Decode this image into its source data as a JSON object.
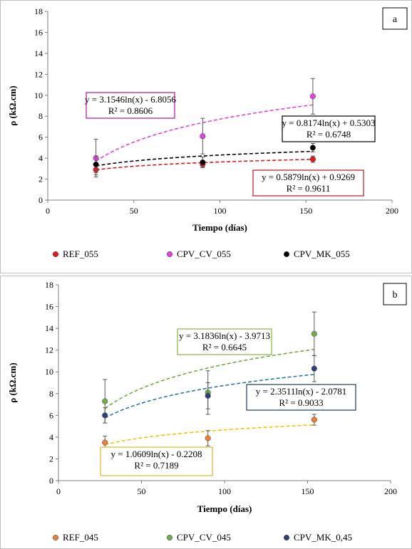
{
  "chart_data": [
    {
      "type": "scatter",
      "panel_label": "a",
      "xlabel": "Tiempo (días)",
      "ylabel": "ρ (kΩ.cm)",
      "xlim": [
        0,
        200
      ],
      "ylim": [
        0,
        18
      ],
      "xticks": [
        0,
        50,
        100,
        150,
        200
      ],
      "yticks": [
        0,
        2,
        4,
        6,
        8,
        10,
        12,
        14,
        16,
        18
      ],
      "grid": false,
      "legend_position": "bottom",
      "series": [
        {
          "name": "REF_055",
          "color": "#e8141b",
          "x": [
            28,
            90,
            154
          ],
          "y": [
            2.9,
            3.4,
            3.9
          ],
          "err": [
            0.5,
            0.3,
            0.3
          ],
          "trend": {
            "a": 0.5879,
            "b": 0.9269,
            "color": "#e8141b"
          }
        },
        {
          "name": "CPV_CV_055",
          "color": "#e83ee6",
          "x": [
            28,
            90,
            154
          ],
          "y": [
            4.0,
            6.1,
            9.9
          ],
          "err": [
            1.8,
            1.7,
            1.7
          ],
          "trend": {
            "a": 3.1546,
            "b": -6.8056,
            "color": "#e83ee6"
          }
        },
        {
          "name": "CPV_MK_055",
          "color": "#000000",
          "x": [
            28,
            90,
            154
          ],
          "y": [
            3.4,
            3.6,
            5.0
          ],
          "err": [
            0.8,
            0.5,
            0.4
          ],
          "trend": {
            "a": 0.8174,
            "b": 0.5303,
            "color": "#000000"
          }
        }
      ],
      "annotations": [
        {
          "lines": [
            "y = 3.1546ln(x) - 6.8056",
            "R² = 0.8606"
          ],
          "border": "#b5119d"
        },
        {
          "lines": [
            "y = 0.8174ln(x) + 0.5303",
            "R² = 0.6748"
          ],
          "border": "#000000"
        },
        {
          "lines": [
            "y = 0.5879ln(x) + 0.9269",
            "R² = 0.9611"
          ],
          "border": "#c0151a"
        }
      ]
    },
    {
      "type": "scatter",
      "panel_label": "b",
      "xlabel": "Tiempo (días)",
      "ylabel": "ρ (kΩ.cm)",
      "xlim": [
        0,
        200
      ],
      "ylim": [
        0,
        18
      ],
      "xticks": [
        0,
        50,
        100,
        150,
        200
      ],
      "yticks": [
        0,
        2,
        4,
        6,
        8,
        10,
        12,
        14,
        16,
        18
      ],
      "grid": false,
      "legend_position": "bottom",
      "series": [
        {
          "name": "REF_045",
          "color": "#ed7d31",
          "x": [
            28,
            90,
            154
          ],
          "y": [
            3.5,
            3.9,
            5.6
          ],
          "err": [
            0.6,
            0.7,
            0.5
          ],
          "trend": {
            "a": 1.0609,
            "b": -0.2208,
            "color": "#ffc000"
          }
        },
        {
          "name": "CPV_CV_045",
          "color": "#70ad47",
          "x": [
            28,
            90,
            154
          ],
          "y": [
            7.3,
            8.1,
            13.5
          ],
          "err": [
            2.0,
            2.0,
            2.0
          ],
          "trend": {
            "a": 3.1836,
            "b": -3.9713,
            "color": "#70ad47"
          }
        },
        {
          "name": "CPV_MK_0,45",
          "color": "#2f3f7a",
          "x": [
            28,
            90,
            154
          ],
          "y": [
            6.0,
            7.8,
            10.3
          ],
          "err": [
            0.7,
            1.2,
            1.2
          ],
          "trend": {
            "a": 2.3511,
            "b": -2.0781,
            "color": "#2e75b6"
          }
        }
      ],
      "annotations": [
        {
          "lines": [
            "y = 3.1836ln(x) - 3.9713",
            "R² = 0.6645"
          ],
          "border": "#8fb23e"
        },
        {
          "lines": [
            "y = 2.3511ln(x) - 2.0781",
            "R² = 0.9033"
          ],
          "border": "#1f3864"
        },
        {
          "lines": [
            "y = 1.0609ln(x) - 0.2208",
            "R² = 0.7189"
          ],
          "border": "#e6b422"
        }
      ]
    }
  ]
}
